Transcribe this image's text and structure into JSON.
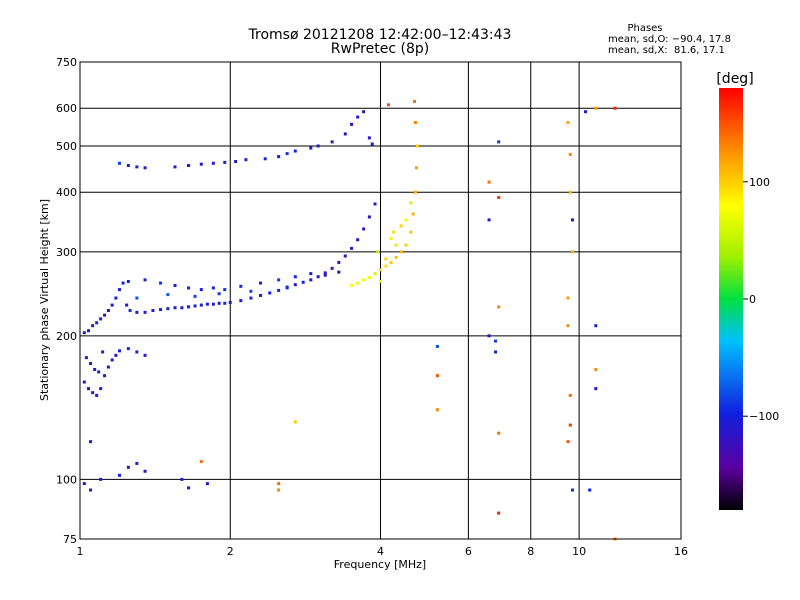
{
  "chart_data": {
    "type": "scatter",
    "title": "Tromsø 20121208 12:42:00–12:43:43",
    "subtitle": "RwPretec (8p)",
    "xlabel": "Frequency [MHz]",
    "ylabel": "Stationary phase Virtual Height [km]",
    "x_scale": "log",
    "y_scale": "log",
    "xlim": [
      1,
      16
    ],
    "ylim": [
      75,
      750
    ],
    "x_ticks": [
      1,
      2,
      4,
      6,
      8,
      10,
      16
    ],
    "y_ticks": [
      75,
      100,
      200,
      300,
      400,
      500,
      600,
      750
    ],
    "grid": true,
    "phases_stats": {
      "title": "Phases",
      "line_o": "mean, sd,O: −90.4, 17.8",
      "line_x": "mean, sd,X:  81.6, 17.1"
    },
    "colorbar": {
      "label": "[deg]",
      "range": [
        -180,
        180
      ],
      "ticks": [
        100,
        0,
        -100
      ]
    },
    "series": [
      {
        "points": [
          [
            1.02,
            203,
            -100
          ],
          [
            1.04,
            205,
            -110
          ],
          [
            1.06,
            210,
            -105
          ],
          [
            1.08,
            213,
            -95
          ],
          [
            1.1,
            217,
            -100
          ],
          [
            1.12,
            221,
            -115
          ],
          [
            1.14,
            226,
            -110
          ],
          [
            1.16,
            232,
            -100
          ],
          [
            1.18,
            240,
            -95
          ],
          [
            1.2,
            250,
            -105
          ],
          [
            1.22,
            258,
            -100
          ],
          [
            1.24,
            232,
            -110
          ],
          [
            1.26,
            226,
            -90
          ],
          [
            1.3,
            224,
            -100
          ],
          [
            1.35,
            224,
            -110
          ],
          [
            1.4,
            226,
            -105
          ],
          [
            1.45,
            227,
            -95
          ],
          [
            1.5,
            228,
            -100
          ],
          [
            1.55,
            229,
            -110
          ],
          [
            1.6,
            229,
            -105
          ],
          [
            1.65,
            230,
            -100
          ],
          [
            1.7,
            231,
            -110
          ],
          [
            1.75,
            232,
            -100
          ],
          [
            1.8,
            233,
            -105
          ],
          [
            1.85,
            233,
            -110
          ],
          [
            1.9,
            234,
            -100
          ],
          [
            1.95,
            234,
            -95
          ],
          [
            2.0,
            235,
            -105
          ],
          [
            2.1,
            237,
            -100
          ],
          [
            2.2,
            240,
            -110
          ],
          [
            2.3,
            243,
            -105
          ],
          [
            2.4,
            246,
            -100
          ],
          [
            2.5,
            249,
            -95
          ],
          [
            2.6,
            253,
            -105
          ],
          [
            2.7,
            256,
            -110
          ],
          [
            2.8,
            259,
            -100
          ],
          [
            2.9,
            262,
            -110
          ],
          [
            3.0,
            266,
            -115
          ],
          [
            3.1,
            271,
            -120
          ],
          [
            3.2,
            277,
            -125
          ],
          [
            3.3,
            285,
            -120
          ],
          [
            3.4,
            294,
            -125
          ],
          [
            3.5,
            305,
            -120
          ],
          [
            3.6,
            318,
            -115
          ],
          [
            3.7,
            335,
            -110
          ],
          [
            3.8,
            355,
            -115
          ],
          [
            3.9,
            378,
            -120
          ],
          [
            1.25,
            260,
            -95
          ],
          [
            1.35,
            262,
            -100
          ],
          [
            1.45,
            258,
            -90
          ],
          [
            1.55,
            255,
            -100
          ],
          [
            1.65,
            252,
            -95
          ],
          [
            1.75,
            250,
            -105
          ],
          [
            1.85,
            252,
            -100
          ],
          [
            1.95,
            250,
            -90
          ],
          [
            2.1,
            254,
            -95
          ],
          [
            2.3,
            258,
            -100
          ],
          [
            2.5,
            262,
            -85
          ],
          [
            2.7,
            266,
            -95
          ],
          [
            2.9,
            270,
            -100
          ],
          [
            3.1,
            268,
            -110
          ],
          [
            3.3,
            272,
            -120
          ],
          [
            1.3,
            240,
            -80
          ],
          [
            1.5,
            244,
            -75
          ],
          [
            1.7,
            242,
            -85
          ],
          [
            1.9,
            245,
            -90
          ],
          [
            2.2,
            248,
            -85
          ],
          [
            2.6,
            252,
            -90
          ]
        ]
      },
      {
        "points": [
          [
            1.2,
            460,
            -85
          ],
          [
            1.25,
            455,
            -95
          ],
          [
            1.3,
            452,
            -100
          ],
          [
            1.35,
            450,
            -105
          ],
          [
            1.55,
            452,
            -110
          ],
          [
            1.65,
            455,
            -115
          ],
          [
            1.75,
            458,
            -110
          ],
          [
            1.85,
            460,
            -105
          ],
          [
            1.95,
            462,
            -100
          ],
          [
            2.05,
            464,
            -110
          ],
          [
            2.15,
            468,
            -105
          ],
          [
            2.35,
            470,
            -95
          ],
          [
            2.5,
            475,
            -100
          ],
          [
            2.6,
            482,
            -90
          ],
          [
            2.7,
            488,
            -95
          ],
          [
            2.9,
            495,
            -100
          ],
          [
            3.0,
            500,
            -110
          ],
          [
            3.2,
            510,
            -115
          ],
          [
            3.4,
            530,
            -120
          ],
          [
            3.5,
            555,
            -125
          ],
          [
            3.6,
            575,
            -120
          ],
          [
            3.7,
            590,
            -115
          ],
          [
            3.8,
            520,
            -110
          ],
          [
            3.85,
            505,
            -100
          ]
        ]
      },
      {
        "points": [
          [
            1.02,
            160,
            -100
          ],
          [
            1.04,
            155,
            -110
          ],
          [
            1.06,
            152,
            -105
          ],
          [
            1.08,
            150,
            -115
          ],
          [
            1.1,
            155,
            -100
          ],
          [
            1.12,
            165,
            -110
          ],
          [
            1.14,
            172,
            -105
          ],
          [
            1.16,
            178,
            -100
          ],
          [
            1.18,
            182,
            -110
          ],
          [
            1.2,
            186,
            -100
          ],
          [
            1.25,
            188,
            -95
          ],
          [
            1.3,
            185,
            -100
          ],
          [
            1.35,
            182,
            -105
          ],
          [
            1.03,
            180,
            -95
          ],
          [
            1.05,
            175,
            -105
          ],
          [
            1.07,
            170,
            -110
          ],
          [
            1.09,
            168,
            -95
          ],
          [
            1.11,
            185,
            -115
          ]
        ]
      },
      {
        "points": [
          [
            3.5,
            255,
            80
          ],
          [
            3.6,
            258,
            70
          ],
          [
            3.7,
            262,
            85
          ],
          [
            3.8,
            265,
            75
          ],
          [
            3.9,
            270,
            60
          ],
          [
            4.0,
            275,
            90
          ],
          [
            4.1,
            280,
            95
          ],
          [
            4.2,
            285,
            100
          ],
          [
            4.3,
            292,
            105
          ],
          [
            4.4,
            300,
            110
          ],
          [
            4.5,
            310,
            100
          ],
          [
            4.6,
            330,
            105
          ],
          [
            4.65,
            360,
            110
          ],
          [
            4.7,
            400,
            115
          ],
          [
            4.72,
            450,
            120
          ],
          [
            4.74,
            500,
            100
          ],
          [
            4.3,
            310,
            90
          ],
          [
            4.2,
            320,
            85
          ],
          [
            4.1,
            290,
            95
          ],
          [
            4.4,
            340,
            100
          ],
          [
            4.5,
            350,
            70
          ],
          [
            4.0,
            260,
            85
          ],
          [
            4.6,
            380,
            60
          ],
          [
            4.7,
            560,
            130
          ],
          [
            4.68,
            620,
            140
          ],
          [
            3.95,
            300,
            50
          ],
          [
            4.15,
            610,
            150
          ],
          [
            4.25,
            330,
            95
          ]
        ]
      },
      {
        "points": [
          [
            1.02,
            98,
            -100
          ],
          [
            1.05,
            95,
            -110
          ],
          [
            1.1,
            100,
            -100
          ],
          [
            1.2,
            102,
            -95
          ],
          [
            1.25,
            106,
            -105
          ],
          [
            1.3,
            108,
            -100
          ],
          [
            1.35,
            104,
            -110
          ],
          [
            1.6,
            100,
            -105
          ],
          [
            1.65,
            96,
            -100
          ],
          [
            1.8,
            98,
            -115
          ],
          [
            1.05,
            120,
            -100
          ],
          [
            5.2,
            190,
            -80
          ],
          [
            5.2,
            165,
            150
          ],
          [
            5.2,
            140,
            130
          ],
          [
            6.6,
            420,
            140
          ],
          [
            6.6,
            350,
            -110
          ],
          [
            6.6,
            200,
            -120
          ],
          [
            6.8,
            195,
            -85
          ],
          [
            6.8,
            185,
            -95
          ],
          [
            6.9,
            510,
            -90
          ],
          [
            6.9,
            390,
            160
          ],
          [
            6.9,
            230,
            130
          ],
          [
            6.9,
            125,
            140
          ],
          [
            6.9,
            85,
            170
          ],
          [
            9.5,
            560,
            120
          ],
          [
            9.6,
            480,
            130
          ],
          [
            9.6,
            400,
            110
          ],
          [
            9.7,
            350,
            -110
          ],
          [
            9.7,
            300,
            110
          ],
          [
            9.5,
            240,
            120
          ],
          [
            9.5,
            210,
            130
          ],
          [
            9.6,
            150,
            140
          ],
          [
            9.6,
            130,
            160
          ],
          [
            9.5,
            120,
            150
          ],
          [
            9.7,
            95,
            -90
          ],
          [
            10.3,
            590,
            -100
          ],
          [
            10.8,
            600,
            120
          ],
          [
            10.8,
            210,
            -100
          ],
          [
            10.8,
            170,
            130
          ],
          [
            10.8,
            155,
            -110
          ],
          [
            10.5,
            95,
            -100
          ],
          [
            11.8,
            600,
            170
          ],
          [
            11.8,
            75,
            130
          ],
          [
            2.5,
            98,
            140
          ],
          [
            2.5,
            95,
            130
          ],
          [
            2.7,
            132,
            100
          ],
          [
            1.75,
            109,
            140
          ]
        ]
      }
    ]
  }
}
